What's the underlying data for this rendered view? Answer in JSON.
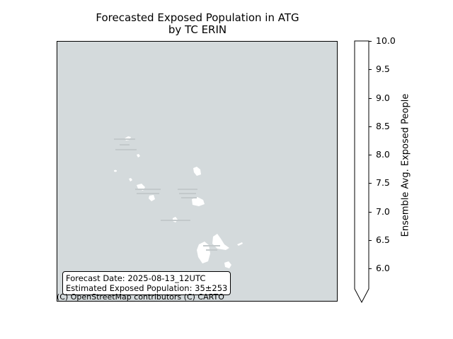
{
  "title": {
    "line1": "Forecasted Exposed Population in ATG",
    "line2": "by TC ERIN"
  },
  "info_box": {
    "forecast_date": "Forecast Date: 2025-08-13_12UTC",
    "exposed_population": "Estimated Exposed Population: 35±253"
  },
  "attribution": "(C) OpenStreetMap contributors (C) CARTO",
  "colorbar": {
    "label": "Ensemble Avg. Exposed People",
    "min": 6.0,
    "max": 10.0,
    "ticks": [
      "6.0",
      "6.5",
      "7.0",
      "7.5",
      "8.0",
      "8.5",
      "9.0",
      "9.5",
      "10.0"
    ],
    "extend": "min",
    "color": "#ffffff"
  },
  "map": {
    "background_color": "#d4dadc",
    "land_color": "#ffffff"
  }
}
